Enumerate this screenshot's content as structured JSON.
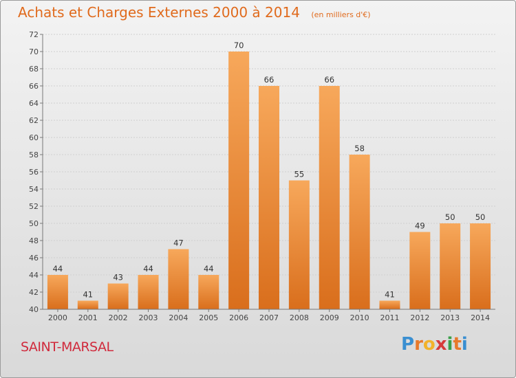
{
  "title": "Achats et Charges Externes 2000 à 2014",
  "unit_note": "(en milliers d'€)",
  "commune": "SAINT-MARSAL",
  "logo": {
    "letters": [
      "P",
      "r",
      "o",
      "x",
      "i",
      "t",
      "i"
    ],
    "colors": [
      "#3a8fd1",
      "#e8792b",
      "#f2b22a",
      "#d63b3b",
      "#3aa04a",
      "#e8792b",
      "#3a8fd1"
    ]
  },
  "colors": {
    "bar_top": "#f7a85b",
    "bar_bottom": "#d96e1c",
    "title": "#e06a1c",
    "commune": "#d02a3c"
  },
  "chart_data": {
    "type": "bar",
    "title": "Achats et Charges Externes 2000 à 2014",
    "subtitle": "(en milliers d'€)",
    "categories": [
      "2000",
      "2001",
      "2002",
      "2003",
      "2004",
      "2005",
      "2006",
      "2007",
      "2008",
      "2009",
      "2010",
      "2011",
      "2012",
      "2013",
      "2014"
    ],
    "values": [
      44,
      41,
      43,
      44,
      47,
      44,
      70,
      66,
      55,
      66,
      58,
      41,
      49,
      50,
      50
    ],
    "xlabel": "",
    "ylabel": "",
    "ylim": [
      40,
      72
    ],
    "yticks": [
      40,
      42,
      44,
      46,
      48,
      50,
      52,
      54,
      56,
      58,
      60,
      62,
      64,
      66,
      68,
      70,
      72
    ],
    "grid": true,
    "legend": "none"
  }
}
